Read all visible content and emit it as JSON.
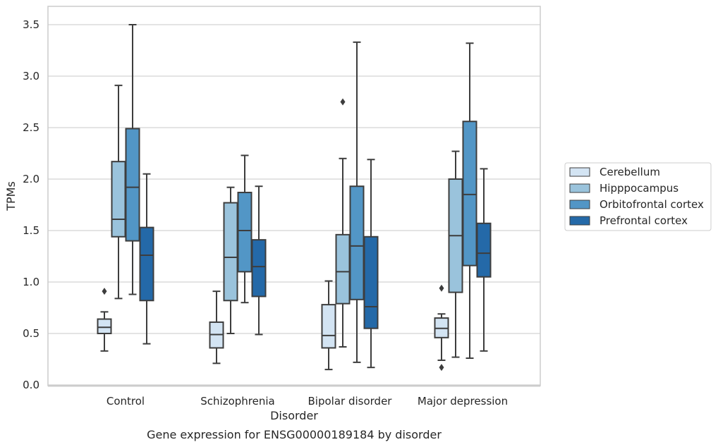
{
  "chart_data": {
    "type": "box",
    "categories": [
      "Control",
      "Schizophrenia",
      "Bipolar disorder",
      "Major depression"
    ],
    "xlabel": "Disorder",
    "ylabel": "TPMs",
    "caption": "Gene expression for ENSG00000189184 by disorder",
    "ylim": [
      0,
      3.65
    ],
    "yticks": [
      "0.0",
      "0.5",
      "1.0",
      "1.5",
      "2.0",
      "2.5",
      "3.0",
      "3.5"
    ],
    "grid": true,
    "legend_position": "center-right",
    "series": [
      {
        "name": "Cerebellum",
        "color": "#d3e4f3",
        "boxes": [
          {
            "whislo": 0.33,
            "q1": 0.5,
            "med": 0.56,
            "q3": 0.64,
            "whishi": 0.71,
            "fliers": [
              0.91
            ]
          },
          {
            "whislo": 0.21,
            "q1": 0.36,
            "med": 0.49,
            "q3": 0.61,
            "whishi": 0.91,
            "fliers": []
          },
          {
            "whislo": 0.15,
            "q1": 0.36,
            "med": 0.48,
            "q3": 0.78,
            "whishi": 1.01,
            "fliers": []
          },
          {
            "whislo": 0.24,
            "q1": 0.46,
            "med": 0.55,
            "q3": 0.65,
            "whishi": 0.69,
            "fliers": [
              0.94,
              0.17
            ]
          }
        ]
      },
      {
        "name": "Hipppocampus",
        "color": "#9ac3dc",
        "boxes": [
          {
            "whislo": 0.84,
            "q1": 1.44,
            "med": 1.61,
            "q3": 2.17,
            "whishi": 2.91,
            "fliers": []
          },
          {
            "whislo": 0.5,
            "q1": 0.82,
            "med": 1.24,
            "q3": 1.77,
            "whishi": 1.92,
            "fliers": []
          },
          {
            "whislo": 0.37,
            "q1": 0.79,
            "med": 1.1,
            "q3": 1.46,
            "whishi": 2.2,
            "fliers": [
              2.75
            ]
          },
          {
            "whislo": 0.27,
            "q1": 0.9,
            "med": 1.45,
            "q3": 2.0,
            "whishi": 2.27,
            "fliers": []
          }
        ]
      },
      {
        "name": "Orbitofrontal cortex",
        "color": "#5296c6",
        "boxes": [
          {
            "whislo": 0.88,
            "q1": 1.4,
            "med": 1.92,
            "q3": 2.49,
            "whishi": 3.5,
            "fliers": []
          },
          {
            "whislo": 0.8,
            "q1": 1.1,
            "med": 1.5,
            "q3": 1.87,
            "whishi": 2.23,
            "fliers": []
          },
          {
            "whislo": 0.22,
            "q1": 0.83,
            "med": 1.35,
            "q3": 1.93,
            "whishi": 3.33,
            "fliers": []
          },
          {
            "whislo": 0.26,
            "q1": 1.16,
            "med": 1.85,
            "q3": 2.56,
            "whishi": 3.32,
            "fliers": []
          }
        ]
      },
      {
        "name": "Prefrontal cortex",
        "color": "#2469a8",
        "boxes": [
          {
            "whislo": 0.4,
            "q1": 0.82,
            "med": 1.26,
            "q3": 1.53,
            "whishi": 2.05,
            "fliers": []
          },
          {
            "whislo": 0.49,
            "q1": 0.86,
            "med": 1.15,
            "q3": 1.41,
            "whishi": 1.93,
            "fliers": []
          },
          {
            "whislo": 0.17,
            "q1": 0.55,
            "med": 0.76,
            "q3": 1.44,
            "whishi": 2.19,
            "fliers": []
          },
          {
            "whislo": 0.33,
            "q1": 1.05,
            "med": 1.28,
            "q3": 1.57,
            "whishi": 2.1,
            "fliers": []
          }
        ]
      }
    ]
  }
}
